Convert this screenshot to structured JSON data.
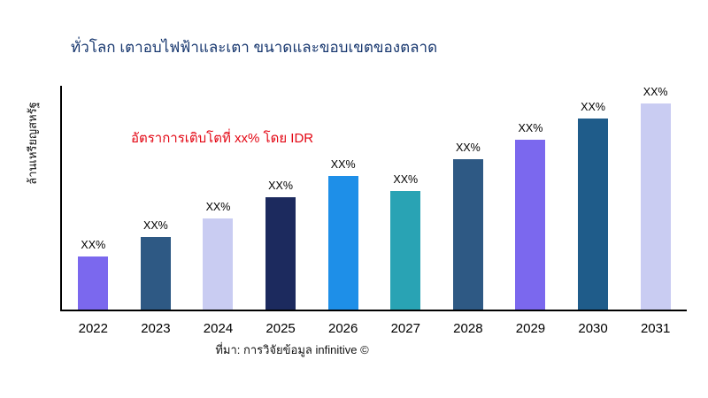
{
  "header": {
    "title": "ทั่วโลก เตาอบไฟฟ้าและเตา ขนาดและขอบเขตของตลาด",
    "title_color": "#16366e"
  },
  "annotation": {
    "growth_note": "อัตราการเติบโตที่ xx% โดย IDR",
    "color": "#e30613"
  },
  "footer": {
    "source": "ที่มา: การวิจัยข้อมูล infinitive ©"
  },
  "chart_data": {
    "type": "bar",
    "title": "ทั่วโลก เตาอบไฟฟ้าและเตา ขนาดและขอบเขตของตลาด",
    "xlabel": "",
    "ylabel": "ล้านเหรียญสหรัฐ",
    "categories": [
      "2022",
      "2023",
      "2024",
      "2025",
      "2026",
      "2027",
      "2028",
      "2029",
      "2030",
      "2031"
    ],
    "values": [
      25,
      34,
      43,
      53,
      63,
      56,
      71,
      80,
      90,
      100
    ],
    "values_note": "relative bar heights (percent of tallest bar); actual figures masked, every bar is labeled XX%",
    "bar_labels": [
      "XX%",
      "XX%",
      "XX%",
      "XX%",
      "XX%",
      "XX%",
      "XX%",
      "XX%",
      "XX%",
      "XX%"
    ],
    "colors": [
      "#7b68ee",
      "#2e5984",
      "#c9ccf2",
      "#1c2a5e",
      "#1e8fe8",
      "#29a3b4",
      "#2e5984",
      "#7b68ee",
      "#1f5c8a",
      "#c9ccf2"
    ],
    "ylim": [
      0,
      100
    ],
    "grid": false,
    "legend": "none",
    "axis_color": "#000000"
  }
}
